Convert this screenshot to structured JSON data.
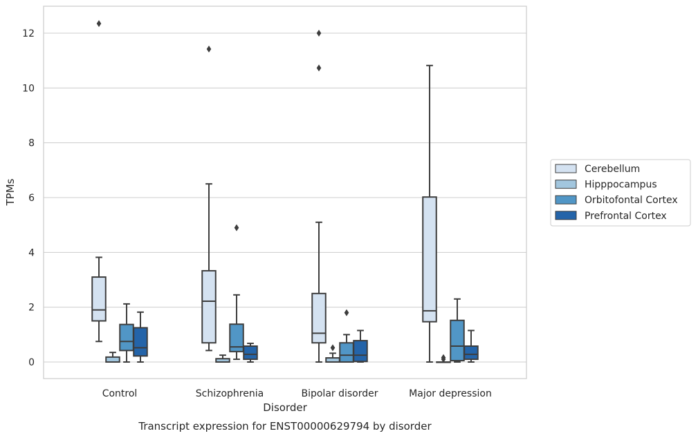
{
  "chart_data": {
    "type": "boxplot",
    "title": "Transcript expression for ENST00000629794 by disorder",
    "xlabel": "Disorder",
    "ylabel": "TPMs",
    "ylim": [
      -0.6,
      13.0
    ],
    "yticks": [
      0,
      2,
      4,
      6,
      8,
      10,
      12
    ],
    "grid": "horizontal",
    "legend_placement": "center-right",
    "categories": [
      "Control",
      "Schizophrenia",
      "Bipolar disorder",
      "Major depression"
    ],
    "series": [
      {
        "name": "Cerebellum",
        "color": "#d4e2f1",
        "boxes": [
          {
            "whisker_low": 0.75,
            "q1": 1.5,
            "median": 1.9,
            "q3": 3.1,
            "whisker_high": 3.82,
            "outliers": [
              12.35
            ]
          },
          {
            "whisker_low": 0.42,
            "q1": 0.7,
            "median": 2.22,
            "q3": 3.33,
            "whisker_high": 6.5,
            "outliers": [
              11.42
            ]
          },
          {
            "whisker_low": 0.0,
            "q1": 0.7,
            "median": 1.05,
            "q3": 2.5,
            "whisker_high": 5.1,
            "outliers": [
              12.0,
              10.73
            ]
          },
          {
            "whisker_low": 0.0,
            "q1": 1.47,
            "median": 1.87,
            "q3": 6.02,
            "whisker_high": 10.82,
            "outliers": []
          }
        ]
      },
      {
        "name": "Hipppocampus",
        "color": "#a2c6de",
        "boxes": [
          {
            "whisker_low": 0.0,
            "q1": 0.0,
            "median": 0.0,
            "q3": 0.18,
            "whisker_high": 0.35,
            "outliers": []
          },
          {
            "whisker_low": 0.0,
            "q1": 0.0,
            "median": 0.0,
            "q3": 0.12,
            "whisker_high": 0.25,
            "outliers": []
          },
          {
            "whisker_low": 0.0,
            "q1": 0.0,
            "median": 0.0,
            "q3": 0.15,
            "whisker_high": 0.32,
            "outliers": [
              0.52
            ]
          },
          {
            "whisker_low": 0.0,
            "q1": 0.0,
            "median": 0.0,
            "q3": 0.0,
            "whisker_high": 0.0,
            "outliers": [
              0.16,
              0.1
            ]
          }
        ]
      },
      {
        "name": "Orbitofontal Cortex",
        "color": "#5196c6",
        "boxes": [
          {
            "whisker_low": 0.0,
            "q1": 0.42,
            "median": 0.75,
            "q3": 1.37,
            "whisker_high": 2.12,
            "outliers": []
          },
          {
            "whisker_low": 0.1,
            "q1": 0.38,
            "median": 0.55,
            "q3": 1.38,
            "whisker_high": 2.45,
            "outliers": [
              4.9
            ]
          },
          {
            "whisker_low": 0.0,
            "q1": 0.0,
            "median": 0.25,
            "q3": 0.7,
            "whisker_high": 1.0,
            "outliers": [
              1.8
            ]
          },
          {
            "whisker_low": 0.0,
            "q1": 0.05,
            "median": 0.58,
            "q3": 1.52,
            "whisker_high": 2.3,
            "outliers": []
          }
        ]
      },
      {
        "name": "Prefrontal Cortex",
        "color": "#2464a9",
        "boxes": [
          {
            "whisker_low": 0.0,
            "q1": 0.22,
            "median": 0.52,
            "q3": 1.25,
            "whisker_high": 1.82,
            "outliers": []
          },
          {
            "whisker_low": 0.0,
            "q1": 0.1,
            "median": 0.28,
            "q3": 0.58,
            "whisker_high": 0.68,
            "outliers": []
          },
          {
            "whisker_low": 0.0,
            "q1": 0.02,
            "median": 0.25,
            "q3": 0.78,
            "whisker_high": 1.15,
            "outliers": []
          },
          {
            "whisker_low": 0.0,
            "q1": 0.1,
            "median": 0.28,
            "q3": 0.58,
            "whisker_high": 1.15,
            "outliers": []
          }
        ]
      }
    ]
  },
  "colors": {
    "frame": "#cccccc",
    "grid": "#cccccc",
    "box_edge": "#3d3d3d",
    "text": "#262626"
  }
}
